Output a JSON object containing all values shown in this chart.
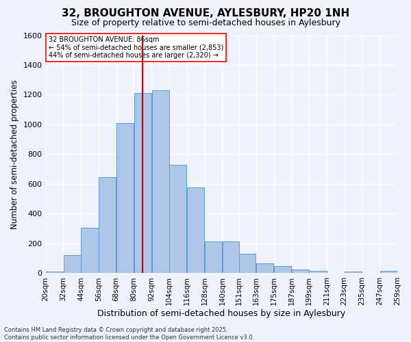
{
  "title_line1": "32, BROUGHTON AVENUE, AYLESBURY, HP20 1NH",
  "title_line2": "Size of property relative to semi-detached houses in Aylesbury",
  "xlabel": "Distribution of semi-detached houses by size in Aylesbury",
  "ylabel": "Number of semi-detached properties",
  "footer_line1": "Contains HM Land Registry data © Crown copyright and database right 2025.",
  "footer_line2": "Contains public sector information licensed under the Open Government Licence v3.0.",
  "annotation_line1": "32 BROUGHTON AVENUE: 86sqm",
  "annotation_line2": "← 54% of semi-detached houses are smaller (2,853)",
  "annotation_line3": "44% of semi-detached houses are larger (2,320) →",
  "property_size": 86,
  "vline_x": 86,
  "bar_edges": [
    20,
    32,
    44,
    56,
    68,
    80,
    92,
    104,
    116,
    128,
    140,
    151.5,
    163,
    175,
    187,
    199,
    211,
    223,
    235,
    247,
    259
  ],
  "bar_heights": [
    10,
    120,
    305,
    645,
    1010,
    1210,
    1230,
    730,
    575,
    215,
    215,
    130,
    65,
    50,
    25,
    15,
    0,
    10,
    0,
    15
  ],
  "bar_color": "#aec6e8",
  "bar_edge_color": "#5b9bd5",
  "vline_color": "#cc0000",
  "background_color": "#eef2fb",
  "grid_color": "#ffffff",
  "ylim": [
    0,
    1600
  ],
  "yticks": [
    0,
    200,
    400,
    600,
    800,
    1000,
    1200,
    1400,
    1600
  ],
  "tick_labels": [
    "20sqm",
    "32sqm",
    "44sqm",
    "56sqm",
    "68sqm",
    "80sqm",
    "92sqm",
    "104sqm",
    "116sqm",
    "128sqm",
    "140sqm",
    "151sqm",
    "163sqm",
    "175sqm",
    "187sqm",
    "199sqm",
    "211sqm",
    "223sqm",
    "235sqm",
    "247sqm",
    "259sqm"
  ]
}
